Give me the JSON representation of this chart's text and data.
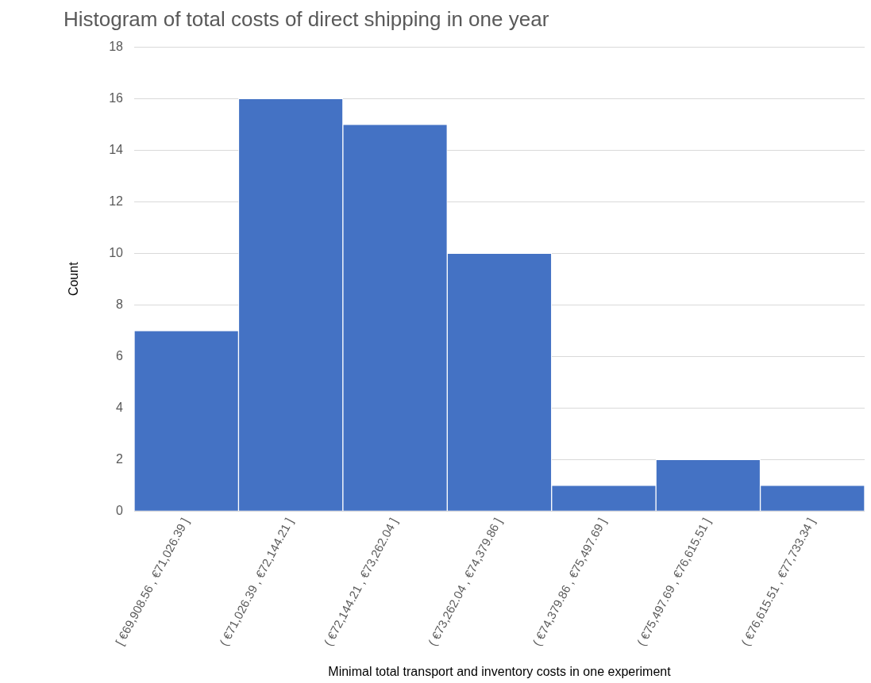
{
  "chart_data": {
    "type": "bar",
    "title": "Histogram of total costs of direct shipping in one year",
    "xlabel": "Minimal total transport and inventory costs in one experiment",
    "ylabel": "Count",
    "categories": [
      "[ €69,908.56 , €71,026.39 ]",
      "( €71,026.39 , €72,144.21 ]",
      "( €72,144.21 , €73,262.04 ]",
      "( €73,262.04 , €74,379.86 ]",
      "( €74,379.86 , €75,497.69 ]",
      "( €75,497.69 , €76,615.51 ]",
      "( €76,615.51 , €77,733.34 ]"
    ],
    "values": [
      7,
      16,
      15,
      10,
      1,
      2,
      1
    ],
    "color": "#4472c4",
    "ylim": [
      0,
      18
    ],
    "yticks": [
      0,
      2,
      4,
      6,
      8,
      10,
      12,
      14,
      16,
      18
    ],
    "grid": "y",
    "legend": false
  }
}
